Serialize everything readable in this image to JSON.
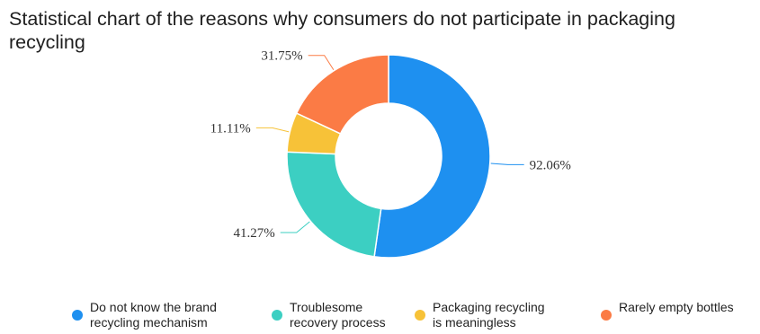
{
  "chart_data": {
    "type": "pie",
    "title": "Statistical chart of the reasons why consumers do not participate in packaging recycling",
    "legend_position": "bottom",
    "categories": [
      "Do not know the brand recycling mechanism",
      "Troublesome recovery process",
      "Packaging recycling is meaningless",
      "Rarely empty bottles"
    ],
    "legend_lines": [
      "Do not know the brand\nrecycling mechanism",
      "Troublesome\nrecovery process",
      "Packaging recycling\nis meaningless",
      "Rarely empty bottles"
    ],
    "values": [
      92.06,
      41.27,
      11.11,
      31.75
    ],
    "data_labels": [
      "92.06%",
      "41.27%",
      "11.11%",
      "31.75%"
    ],
    "colors": [
      "#1E90F0",
      "#3CCFC2",
      "#F7C238",
      "#FB7B45"
    ]
  }
}
